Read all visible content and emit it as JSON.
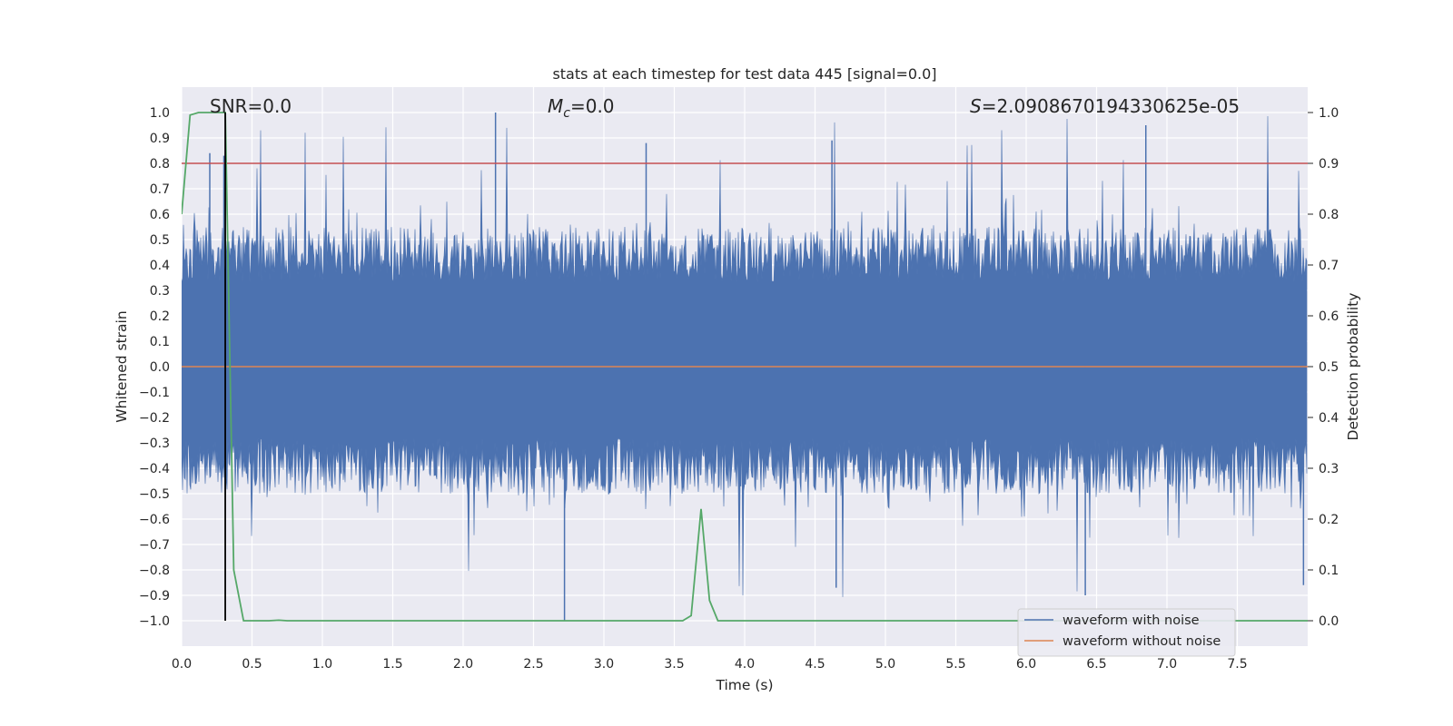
{
  "chart_data": {
    "type": "line",
    "title": "stats at each timestep for test data 445 [signal=0.0]",
    "xlabel": "Time (s)",
    "ylabel": "Whitened strain",
    "y2label": "Detection probability",
    "xlim": [
      0.0,
      8.0
    ],
    "ylim": [
      -1.1,
      1.1
    ],
    "y2lim": [
      -0.05,
      1.05
    ],
    "xticks": [
      "0.0",
      "0.5",
      "1.0",
      "1.5",
      "2.0",
      "2.5",
      "3.0",
      "3.5",
      "4.0",
      "4.5",
      "5.0",
      "5.5",
      "6.0",
      "6.5",
      "7.0",
      "7.5"
    ],
    "xtick_values": [
      0.0,
      0.5,
      1.0,
      1.5,
      2.0,
      2.5,
      3.0,
      3.5,
      4.0,
      4.5,
      5.0,
      5.5,
      6.0,
      6.5,
      7.0,
      7.5
    ],
    "yticks": [
      "1.0",
      "0.9",
      "0.8",
      "0.7",
      "0.6",
      "0.5",
      "0.4",
      "0.3",
      "0.2",
      "0.1",
      "0.0",
      "−0.1",
      "−0.2",
      "−0.3",
      "−0.4",
      "−0.5",
      "−0.6",
      "−0.7",
      "−0.8",
      "−0.9",
      "−1.0"
    ],
    "ytick_values": [
      1.0,
      0.9,
      0.8,
      0.7,
      0.6,
      0.5,
      0.4,
      0.3,
      0.2,
      0.1,
      0.0,
      -0.1,
      -0.2,
      -0.3,
      -0.4,
      -0.5,
      -0.6,
      -0.7,
      -0.8,
      -0.9,
      -1.0
    ],
    "y2ticks": [
      "1.0",
      "0.9",
      "0.8",
      "0.7",
      "0.6",
      "0.5",
      "0.4",
      "0.3",
      "0.2",
      "0.1",
      "0.0"
    ],
    "y2tick_values": [
      1.0,
      0.9,
      0.8,
      0.7,
      0.6,
      0.5,
      0.4,
      0.3,
      0.2,
      0.1,
      0.0
    ],
    "annotations": {
      "snr": "SNR=0.0",
      "mc_symbol": "M",
      "mc_sub": "c",
      "mc_value": "=0.0",
      "s_symbol": "S",
      "s_value": "=2.0908670194330625e-05"
    },
    "series": [
      {
        "name": "waveform with noise",
        "color": "#4c72b0",
        "sample_rate_hz": 512,
        "peak_envelope": "approx ±0.4 to ±0.6 with spikes near 1.0 and −1.0"
      },
      {
        "name": "waveform without noise",
        "color": "#dd8452",
        "value": 0.0
      },
      {
        "name": "detection probability",
        "color": "#55a868",
        "axis": "y2",
        "x": [
          0.0,
          0.06,
          0.12,
          0.19,
          0.25,
          0.31,
          0.37,
          0.44,
          0.5,
          0.56,
          0.62,
          0.69,
          0.75,
          3.5,
          3.56,
          3.62,
          3.69,
          3.75,
          3.81,
          3.88,
          8.0
        ],
        "values": [
          0.8,
          0.995,
          1.0,
          1.0,
          1.0,
          1.0,
          0.1,
          0.0,
          0.0,
          0.0,
          0.0,
          0.001,
          0.0,
          0.0,
          0.0,
          0.01,
          0.22,
          0.04,
          0.0,
          0.0,
          0.0
        ]
      }
    ],
    "threshold_line": {
      "value": 0.9,
      "axis": "y2",
      "color": "#c44e52"
    },
    "marker_line": {
      "x": 0.31,
      "from": 1.0,
      "to": -1.0,
      "color": "#000000"
    },
    "legend": {
      "location": "lower right",
      "entries": [
        "waveform with noise",
        "waveform without noise"
      ]
    }
  }
}
